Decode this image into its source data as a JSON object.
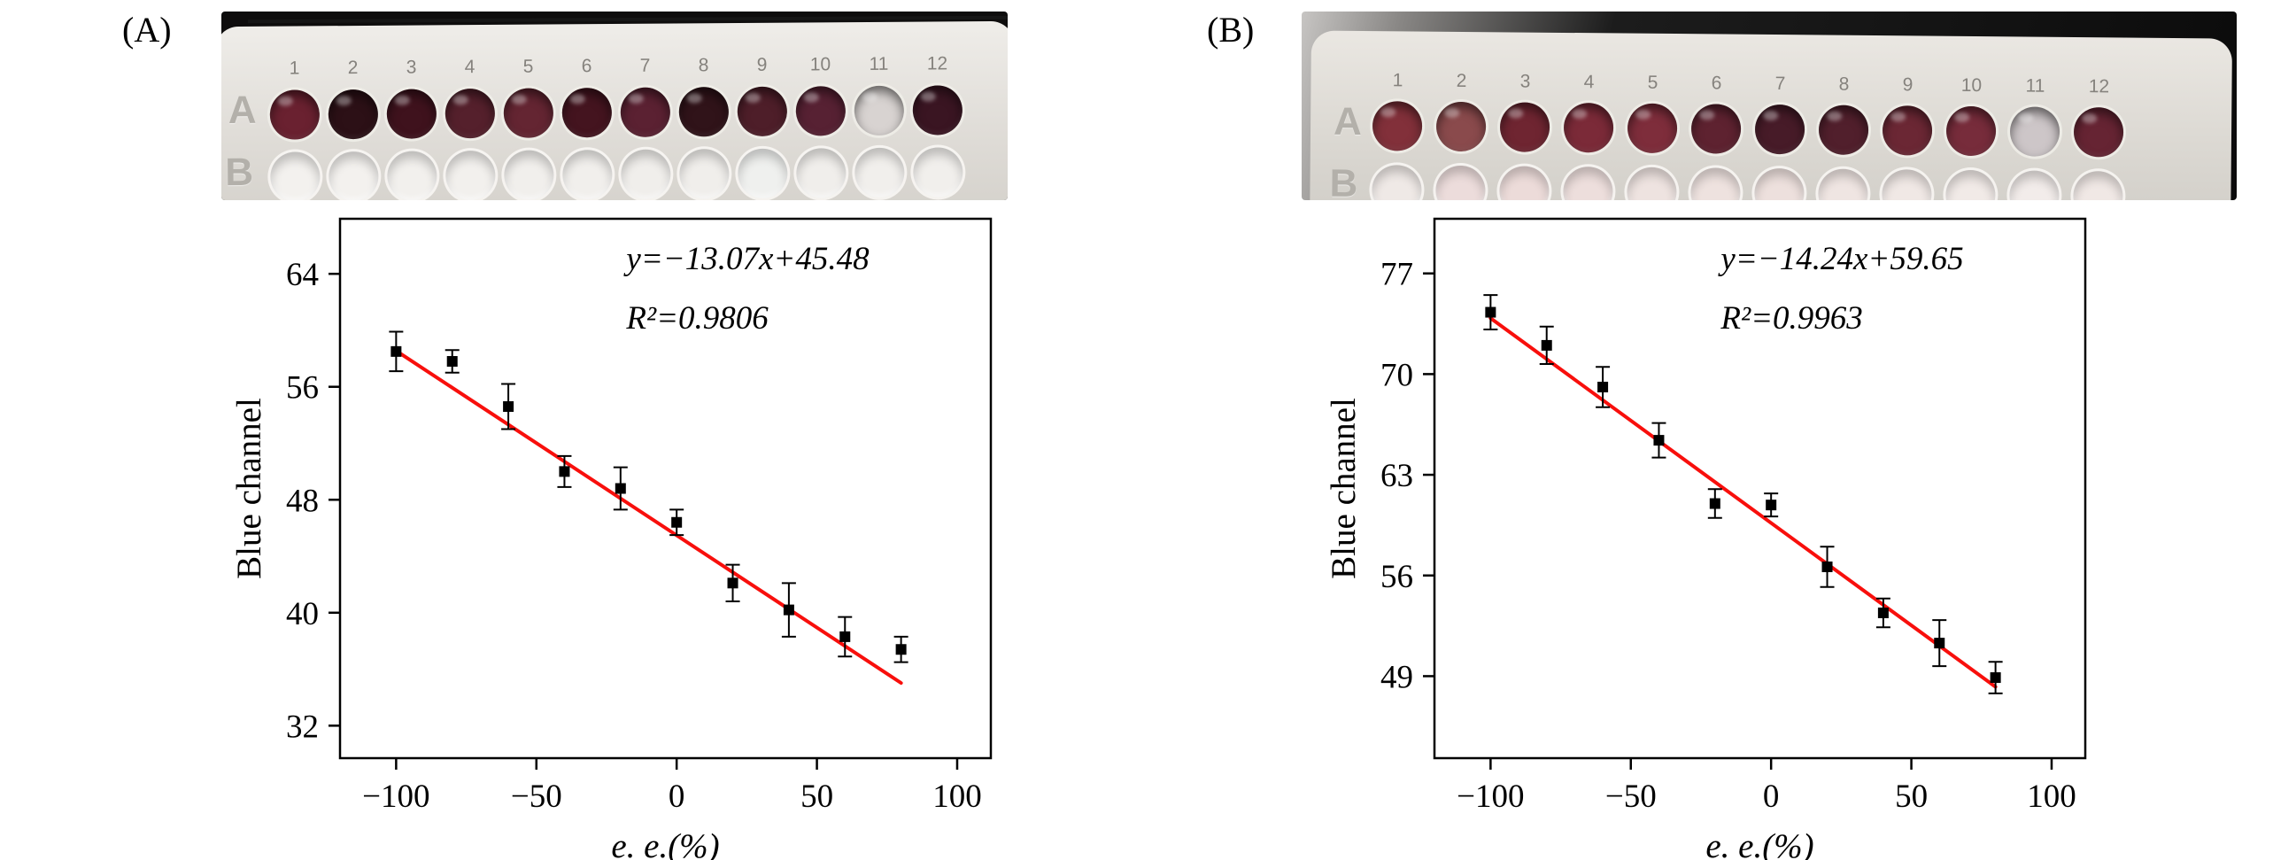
{
  "panels": [
    {
      "label": "(A)",
      "plate": {
        "row_labels": [
          "A",
          "B"
        ],
        "column_numbers": [
          "1",
          "2",
          "3",
          "4",
          "5",
          "6",
          "7",
          "8",
          "9",
          "10",
          "11",
          "12"
        ],
        "row_a_colors": [
          "#6a2130",
          "#2c1016",
          "#3f121d",
          "#55202c",
          "#642532",
          "#44141f",
          "#5b2132",
          "#301319",
          "#4e1e29",
          "#572133",
          "#d8d3d1",
          "#3a1522"
        ],
        "row_b_colors": [
          "#f3f1ee",
          "#f3f1ee",
          "#f2f0ed",
          "#f2f0ed",
          "#f1efec",
          "#f1efec",
          "#f0eeeb",
          "#f0eeeb",
          "#eff0ee",
          "#f0eeeb",
          "#f1efec",
          "#f1efec"
        ]
      }
    },
    {
      "label": "(B)",
      "plate": {
        "row_labels": [
          "A",
          "B"
        ],
        "column_numbers": [
          "1",
          "2",
          "3",
          "4",
          "5",
          "6",
          "7",
          "8",
          "9",
          "10",
          "11",
          "12"
        ],
        "row_a_colors": [
          "#82303a",
          "#8a4a4c",
          "#6f2531",
          "#7b2a38",
          "#7e2d3b",
          "#5e2230",
          "#471b28",
          "#511f2c",
          "#6b2734",
          "#772c3b",
          "#cdc6c8",
          "#662433"
        ],
        "row_b_colors": [
          "#efe9e6",
          "#ecdcdb",
          "#ecdbd9",
          "#eddedc",
          "#eee3e0",
          "#eee2df",
          "#ede0dd",
          "#efe5e2",
          "#f0e8e5",
          "#f1eae7",
          "#f2ecea",
          "#f0e8e5"
        ]
      }
    }
  ],
  "chart_data": [
    {
      "type": "scatter",
      "panel": "A",
      "title": "",
      "xlabel": "e. e.(%)",
      "ylabel": "Blue channel",
      "annotation": {
        "equation": "y=−13.07x+45.48",
        "r_squared": "R²=0.9806"
      },
      "x": [
        -100,
        -80,
        -60,
        -40,
        -20,
        0,
        20,
        40,
        60,
        80
      ],
      "y": [
        58.5,
        57.8,
        54.6,
        50.0,
        48.8,
        46.4,
        42.1,
        40.2,
        38.3,
        37.4
      ],
      "y_err": [
        1.4,
        0.8,
        1.6,
        1.1,
        1.5,
        0.9,
        1.3,
        1.9,
        1.4,
        0.9
      ],
      "fit": {
        "slope": -13.07,
        "intercept": 45.48,
        "x_start": -100,
        "x_end": 80,
        "color": "#f80f0c"
      },
      "xticks": [
        -100,
        -50,
        0,
        50,
        100
      ],
      "yticks": [
        32,
        40,
        48,
        56,
        64
      ],
      "xlim": [
        -120,
        112
      ],
      "ylim": [
        29.7,
        67.9
      ],
      "marker": "square",
      "marker_color": "#000000",
      "grid": false,
      "legend": "none"
    },
    {
      "type": "scatter",
      "panel": "B",
      "title": "",
      "xlabel": "e. e.(%)",
      "ylabel": "Blue channel",
      "annotation": {
        "equation": "y=−14.24x+59.65",
        "r_squared": "R²=0.9963"
      },
      "x": [
        -100,
        -80,
        -60,
        -40,
        -20,
        0,
        20,
        40,
        60,
        80
      ],
      "y": [
        74.3,
        72.0,
        69.1,
        65.4,
        61.0,
        60.9,
        56.6,
        53.4,
        51.3,
        48.9
      ],
      "y_err": [
        1.2,
        1.3,
        1.4,
        1.2,
        1.0,
        0.8,
        1.4,
        1.0,
        1.6,
        1.1
      ],
      "fit": {
        "slope": -14.24,
        "intercept": 59.65,
        "x_start": -100,
        "x_end": 80,
        "color": "#f80f0c"
      },
      "xticks": [
        -100,
        -50,
        0,
        50,
        100
      ],
      "yticks": [
        49,
        56,
        63,
        70,
        77
      ],
      "xlim": [
        -120,
        112
      ],
      "ylim": [
        43.3,
        80.8
      ],
      "marker": "square",
      "marker_color": "#000000",
      "grid": false,
      "legend": "none"
    }
  ]
}
